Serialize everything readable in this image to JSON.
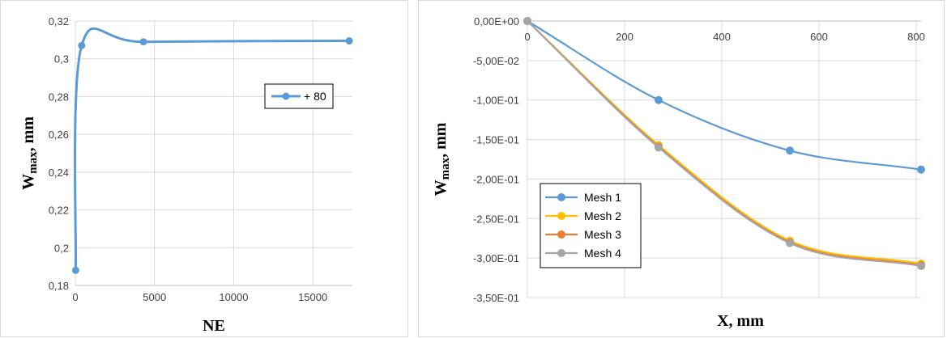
{
  "chart_data": [
    {
      "type": "line",
      "title": "",
      "xlabel": "NE",
      "ylabel": "Wmax, mm",
      "ylabel_main": "W",
      "ylabel_sub": "max",
      "ylabel_suffix": ", mm",
      "xlim": [
        0,
        17500
      ],
      "ylim": [
        0.18,
        0.32
      ],
      "xticks": [
        0,
        5000,
        10000,
        15000
      ],
      "xtick_labels": [
        "0",
        "5000",
        "10000",
        "15000"
      ],
      "yticks": [
        0.18,
        0.2,
        0.22,
        0.24,
        0.26,
        0.28,
        0.3,
        0.32
      ],
      "ytick_labels": [
        "0,18",
        "0,2",
        "0,22",
        "0,24",
        "0,26",
        "0,28",
        "0,3",
        "0,32"
      ],
      "grid": true,
      "legend_position": "center-right",
      "series": [
        {
          "name": "+ 80",
          "color": "#5b9bd5",
          "x": [
            20,
            400,
            4300,
            17300
          ],
          "y": [
            0.188,
            0.307,
            0.309,
            0.3095
          ]
        }
      ]
    },
    {
      "type": "line",
      "title": "",
      "xlabel": "X, mm",
      "ylabel": "Wmax, mm",
      "ylabel_main": "W",
      "ylabel_sub": "max",
      "ylabel_suffix": ", mm",
      "xlim": [
        0,
        810
      ],
      "ylim": [
        -0.35,
        0
      ],
      "xticks": [
        0,
        200,
        400,
        600,
        800
      ],
      "xtick_labels": [
        "0",
        "200",
        "400",
        "600",
        "800"
      ],
      "yticks": [
        0,
        -0.05,
        -0.1,
        -0.15,
        -0.2,
        -0.25,
        -0.3,
        -0.35
      ],
      "ytick_labels": [
        "0,00E+00",
        "-5,00E-02",
        "-1,00E-01",
        "-1,50E-01",
        "-2,00E-01",
        "-2,50E-01",
        "-3,00E-01",
        "-3,50E-01"
      ],
      "grid": true,
      "legend_position": "bottom-left",
      "series": [
        {
          "name": "Mesh 1",
          "color": "#5b9bd5",
          "x": [
            0,
            270,
            540,
            810
          ],
          "y": [
            0,
            -0.1,
            -0.164,
            -0.188
          ]
        },
        {
          "name": "Mesh 2",
          "color": "#ffc000",
          "x": [
            0,
            270,
            540,
            810
          ],
          "y": [
            0,
            -0.157,
            -0.278,
            -0.307
          ]
        },
        {
          "name": "Mesh 3",
          "color": "#ed7d31",
          "x": [
            0,
            270,
            540,
            810
          ],
          "y": [
            0,
            -0.159,
            -0.28,
            -0.309
          ]
        },
        {
          "name": "Mesh 4",
          "color": "#a5a5a5",
          "x": [
            0,
            270,
            540,
            810
          ],
          "y": [
            0,
            -0.16,
            -0.281,
            -0.31
          ]
        }
      ]
    }
  ]
}
